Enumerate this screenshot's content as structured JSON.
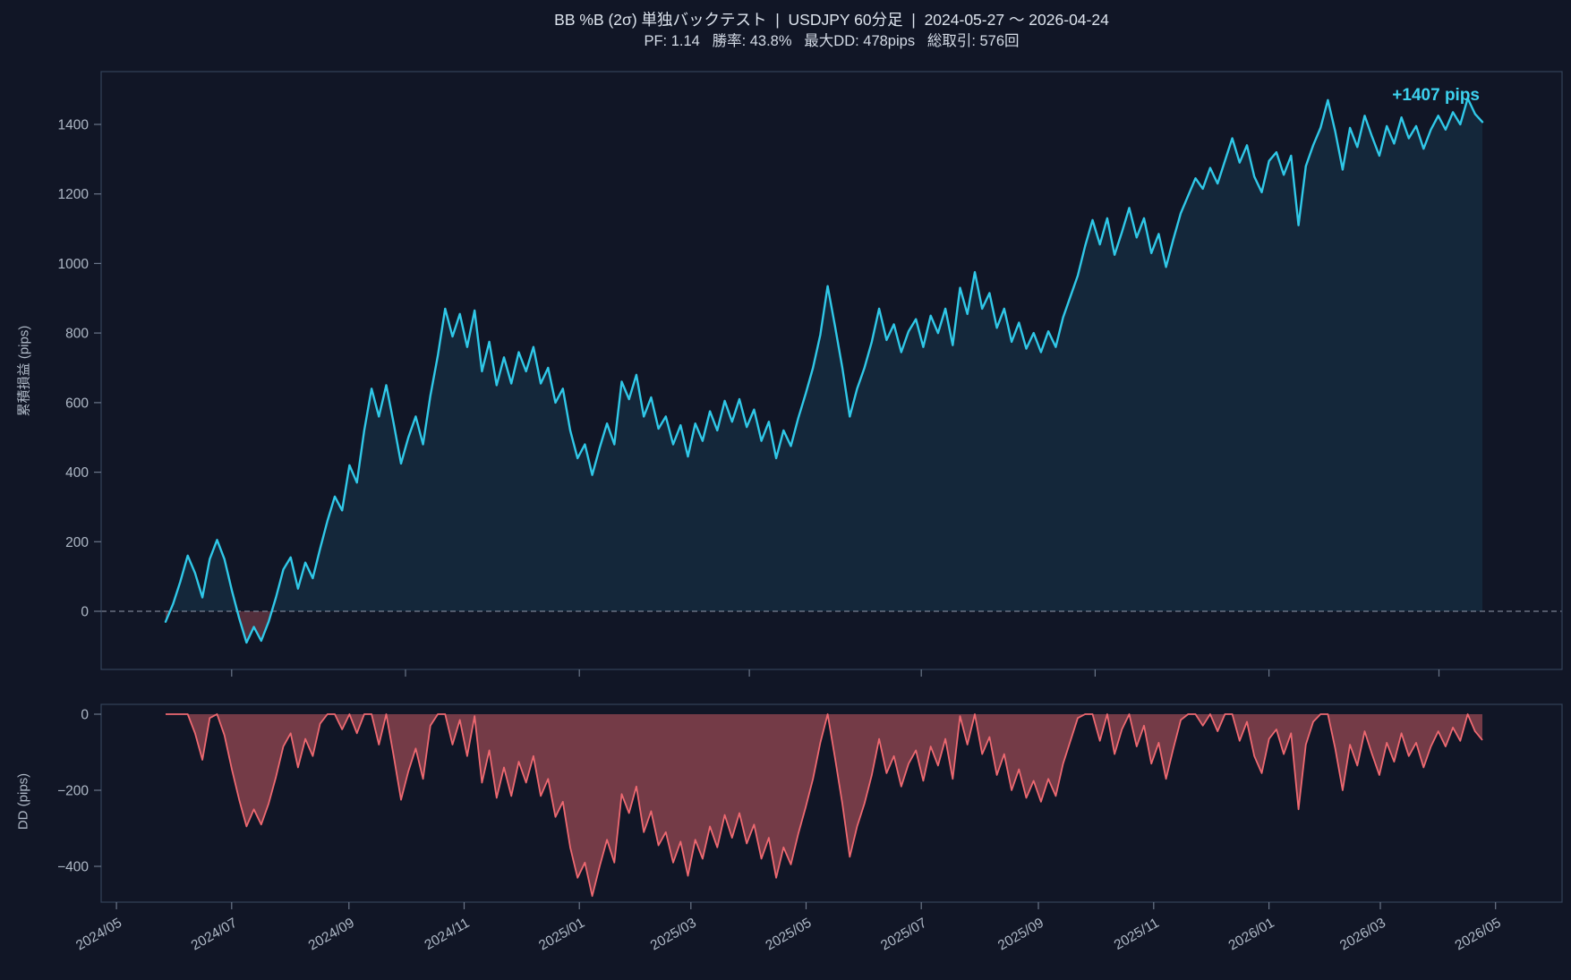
{
  "header": {
    "title": "BB %B (2σ) 単独バックテスト  |  USDJPY 60分足  |  2024-05-27 ～ 2026-04-24",
    "subtitle": "PF: 1.14   勝率: 43.8%   最大DD: 478pips   総取引: 576回"
  },
  "annotation": {
    "final_pips_label": "+1407 pips"
  },
  "colors": {
    "background": "#111626",
    "equity_line": "#30c8e8",
    "equity_fill_positive": "rgba(48,200,232,0.10)",
    "equity_fill_negative": "rgba(238,105,113,0.30)",
    "dd_line": "#ee6971",
    "dd_fill": "rgba(238,105,113,0.45)",
    "zero_line": "#8a93a5",
    "spine": "#334259",
    "tick": "#6b7689",
    "tick_label": "#aeb8c6",
    "title_text": "#dce3ed",
    "annotation_text": "#3dd2ef"
  },
  "chart_data": [
    {
      "type": "area",
      "name": "cumulative-pnl",
      "ylabel": "累積損益 (pips)",
      "x_start": "2024-05-27",
      "x_end": "2026-04-24",
      "ylim": [
        -167,
        1552
      ],
      "y_ticks": [
        0,
        200,
        400,
        600,
        800,
        1000,
        1200,
        1400
      ],
      "x_ticks_unlabeled_t": [
        0.0502,
        0.1822,
        0.3142,
        0.4433,
        0.5739,
        0.7059,
        0.8379,
        0.967
      ],
      "zero_line": "dashed",
      "final_value": 1407,
      "grid": false,
      "legend": "none",
      "series": [
        {
          "name": "累積損益",
          "values": [
            -30,
            20,
            85,
            160,
            110,
            40,
            150,
            205,
            150,
            60,
            -20,
            -90,
            -45,
            -85,
            -30,
            40,
            120,
            155,
            65,
            140,
            95,
            180,
            260,
            330,
            290,
            420,
            370,
            520,
            640,
            560,
            650,
            540,
            425,
            500,
            560,
            480,
            620,
            735,
            870,
            790,
            855,
            760,
            865,
            690,
            775,
            650,
            730,
            655,
            745,
            690,
            760,
            655,
            700,
            600,
            640,
            520,
            440,
            480,
            392,
            470,
            540,
            480,
            660,
            610,
            680,
            560,
            615,
            525,
            560,
            480,
            535,
            445,
            540,
            490,
            575,
            520,
            605,
            545,
            610,
            530,
            580,
            490,
            545,
            440,
            520,
            475,
            555,
            625,
            700,
            795,
            935,
            820,
            700,
            560,
            640,
            700,
            775,
            870,
            780,
            825,
            745,
            805,
            840,
            760,
            850,
            800,
            870,
            765,
            930,
            855,
            975,
            870,
            915,
            815,
            870,
            775,
            830,
            755,
            800,
            745,
            805,
            760,
            845,
            905,
            965,
            1050,
            1125,
            1055,
            1130,
            1025,
            1090,
            1160,
            1075,
            1130,
            1030,
            1085,
            990,
            1070,
            1145,
            1195,
            1245,
            1215,
            1275,
            1230,
            1295,
            1360,
            1290,
            1340,
            1250,
            1205,
            1295,
            1320,
            1255,
            1310,
            1110,
            1280,
            1340,
            1390,
            1470,
            1380,
            1270,
            1390,
            1335,
            1425,
            1365,
            1310,
            1395,
            1345,
            1420,
            1360,
            1395,
            1330,
            1385,
            1425,
            1385,
            1435,
            1400,
            1475,
            1430,
            1407
          ]
        }
      ]
    },
    {
      "type": "area",
      "name": "drawdown",
      "ylabel": "DD (pips)",
      "ylim": [
        -495,
        26
      ],
      "y_ticks": [
        0,
        -200,
        -400
      ],
      "x_tick_labels": [
        "2024/05",
        "2024/07",
        "2024/09",
        "2024/11",
        "2025/01",
        "2025/03",
        "2025/05",
        "2025/07",
        "2025/09",
        "2025/11",
        "2026/01",
        "2026/03",
        "2026/05"
      ],
      "x_ticks_t": [
        -0.0373,
        0.0502,
        0.1392,
        0.2267,
        0.3142,
        0.3989,
        0.4864,
        0.5739,
        0.6628,
        0.7504,
        0.8379,
        0.9225,
        1.01
      ],
      "grid": false,
      "derived": "drawdown[i] = cumulative[i] - max(cumulative[0..i])"
    }
  ]
}
